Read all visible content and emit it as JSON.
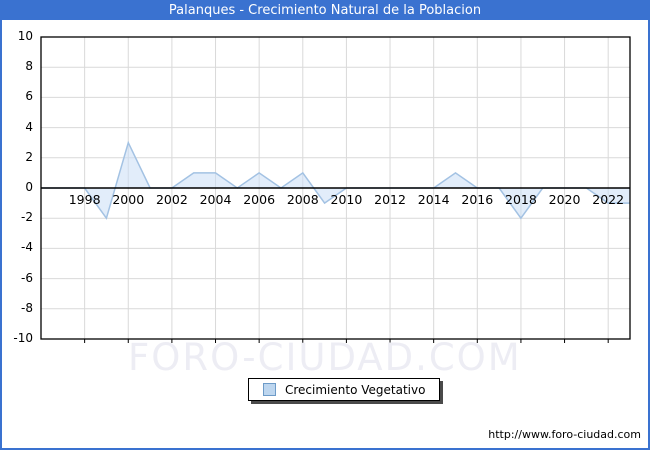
{
  "title_bar": {
    "text": "Palanques - Crecimiento Natural de la Poblacion",
    "bg_color": "#3A72D0",
    "text_color": "#FFFFFF"
  },
  "watermark": {
    "text": "FORO-CIUDAD.COM",
    "color": "#EDEDF4"
  },
  "legend": {
    "label": "Crecimiento Vegetativo",
    "swatch_fill": "#BDD6EF",
    "swatch_border": "#6D9BC8"
  },
  "footer": {
    "url": "http://www.foro-ciudad.com"
  },
  "chart_data": {
    "type": "area",
    "title": "Palanques - Crecimiento Natural de la Poblacion",
    "x": [
      1996,
      1997,
      1998,
      1999,
      2000,
      2001,
      2002,
      2003,
      2004,
      2005,
      2006,
      2007,
      2008,
      2009,
      2010,
      2011,
      2012,
      2013,
      2014,
      2015,
      2016,
      2017,
      2018,
      2019,
      2020,
      2021,
      2022,
      2023
    ],
    "series": [
      {
        "name": "Crecimiento Vegetativo",
        "values": [
          0,
          0,
          0,
          -2,
          3,
          0,
          0,
          1,
          1,
          0,
          1,
          0,
          1,
          -1,
          0,
          0,
          0,
          0,
          0,
          1,
          0,
          0,
          -2,
          0,
          0,
          0,
          -1,
          -1
        ]
      }
    ],
    "ylim": [
      -10,
      10
    ],
    "y_ticks": [
      10,
      8,
      6,
      4,
      2,
      0,
      -2,
      -4,
      -6,
      -8,
      -10
    ],
    "x_ticks": [
      1998,
      2000,
      2002,
      2004,
      2006,
      2008,
      2010,
      2012,
      2014,
      2016,
      2018,
      2020,
      2022
    ],
    "grid": true,
    "legend_position": "bottom-center",
    "colors": {
      "line": "#A3C2E3",
      "fill": "rgba(203,223,245,0.55)",
      "grid": "#D9D9D9",
      "axis": "#000000",
      "frame_accent": "#3A72D0"
    }
  }
}
